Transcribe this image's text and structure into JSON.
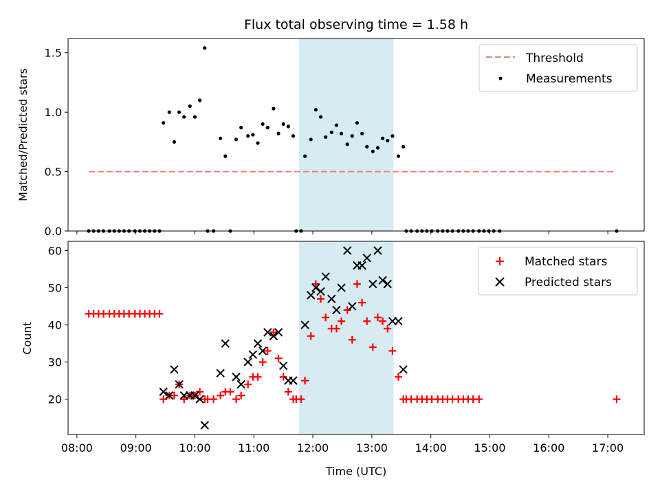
{
  "chart_data": [
    {
      "type": "scatter",
      "title": "Flux total observing time = 1.58 h",
      "ylabel": "Matched/Predicted stars",
      "xlim": [
        "07:51",
        "17:37"
      ],
      "ylim": [
        0,
        1.62
      ],
      "yticks": [
        "0.0",
        "0.5",
        "1.0",
        "1.5"
      ],
      "grid": false,
      "legend_position": "top-right",
      "highlight_span": {
        "start": "11:46",
        "end": "13:22",
        "color": "#add8e6"
      },
      "threshold": {
        "name": "Threshold",
        "y": 0.5,
        "x_start": "08:12",
        "x_end": "17:06",
        "color": "#f08080",
        "style": "dashed"
      },
      "series": [
        {
          "name": "Measurements",
          "color": "#000000",
          "marker": "dot",
          "points": [
            [
              "08:12",
              0
            ],
            [
              "08:17",
              0
            ],
            [
              "08:22",
              0
            ],
            [
              "08:27",
              0
            ],
            [
              "08:33",
              0
            ],
            [
              "08:38",
              0
            ],
            [
              "08:43",
              0
            ],
            [
              "08:48",
              0
            ],
            [
              "08:53",
              0
            ],
            [
              "08:59",
              0
            ],
            [
              "09:04",
              0
            ],
            [
              "09:09",
              0
            ],
            [
              "09:14",
              0
            ],
            [
              "09:19",
              0
            ],
            [
              "09:24",
              0
            ],
            [
              "09:28",
              0.91
            ],
            [
              "09:34",
              1.0
            ],
            [
              "09:39",
              0.75
            ],
            [
              "09:44",
              1.0
            ],
            [
              "09:49",
              0.96
            ],
            [
              "09:55",
              1.05
            ],
            [
              "10:00",
              0.96
            ],
            [
              "10:05",
              1.1
            ],
            [
              "10:10",
              1.54
            ],
            [
              "10:13",
              0
            ],
            [
              "10:19",
              0
            ],
            [
              "10:26",
              0.78
            ],
            [
              "10:31",
              0.63
            ],
            [
              "10:36",
              0
            ],
            [
              "10:42",
              0.77
            ],
            [
              "10:47",
              0.87
            ],
            [
              "10:54",
              0.8
            ],
            [
              "10:59",
              0.81
            ],
            [
              "11:04",
              0.74
            ],
            [
              "11:09",
              0.9
            ],
            [
              "11:14",
              0.87
            ],
            [
              "11:20",
              1.03
            ],
            [
              "11:25",
              0.82
            ],
            [
              "11:30",
              0.9
            ],
            [
              "11:35",
              0.88
            ],
            [
              "11:40",
              0.8
            ],
            [
              "11:43",
              0
            ],
            [
              "11:48",
              0
            ],
            [
              "11:52",
              0.63
            ],
            [
              "11:58",
              0.77
            ],
            [
              "12:03",
              1.02
            ],
            [
              "12:08",
              0.96
            ],
            [
              "12:13",
              0.79
            ],
            [
              "12:19",
              0.83
            ],
            [
              "12:24",
              0.89
            ],
            [
              "12:29",
              0.82
            ],
            [
              "12:35",
              0.73
            ],
            [
              "12:40",
              0.8
            ],
            [
              "12:45",
              0.91
            ],
            [
              "12:50",
              0.82
            ],
            [
              "12:55",
              0.71
            ],
            [
              "13:01",
              0.67
            ],
            [
              "13:06",
              0.7
            ],
            [
              "13:11",
              0.78
            ],
            [
              "13:16",
              0.76
            ],
            [
              "13:21",
              0.8
            ],
            [
              "13:27",
              0.63
            ],
            [
              "13:32",
              0.71
            ],
            [
              "13:35",
              0
            ],
            [
              "13:40",
              0
            ],
            [
              "13:46",
              0
            ],
            [
              "13:51",
              0
            ],
            [
              "13:56",
              0
            ],
            [
              "14:01",
              0
            ],
            [
              "14:07",
              0
            ],
            [
              "14:12",
              0
            ],
            [
              "14:17",
              0
            ],
            [
              "14:22",
              0
            ],
            [
              "14:28",
              0
            ],
            [
              "14:33",
              0
            ],
            [
              "14:38",
              0
            ],
            [
              "14:43",
              0
            ],
            [
              "14:49",
              0
            ],
            [
              "14:54",
              0
            ],
            [
              "14:59",
              0
            ],
            [
              "15:04",
              0
            ],
            [
              "15:10",
              0
            ],
            [
              "17:09",
              0
            ]
          ]
        }
      ]
    },
    {
      "type": "scatter",
      "xlabel": "Time (UTC)",
      "ylabel": "Count",
      "xlim": [
        "07:51",
        "17:37"
      ],
      "ylim": [
        10.5,
        62.5
      ],
      "xticks": [
        "08:00",
        "09:00",
        "10:00",
        "11:00",
        "12:00",
        "13:00",
        "14:00",
        "15:00",
        "16:00",
        "17:00"
      ],
      "yticks": [
        "20",
        "30",
        "40",
        "50",
        "60"
      ],
      "grid": false,
      "legend_position": "top-right",
      "highlight_span": {
        "start": "11:46",
        "end": "13:22",
        "color": "#add8e6"
      },
      "series": [
        {
          "name": "Matched stars",
          "color": "#ff0000",
          "marker": "plus",
          "points": [
            [
              "08:12",
              43
            ],
            [
              "08:17",
              43
            ],
            [
              "08:22",
              43
            ],
            [
              "08:27",
              43
            ],
            [
              "08:33",
              43
            ],
            [
              "08:38",
              43
            ],
            [
              "08:43",
              43
            ],
            [
              "08:48",
              43
            ],
            [
              "08:53",
              43
            ],
            [
              "08:59",
              43
            ],
            [
              "09:04",
              43
            ],
            [
              "09:09",
              43
            ],
            [
              "09:14",
              43
            ],
            [
              "09:19",
              43
            ],
            [
              "09:24",
              43
            ],
            [
              "09:28",
              20
            ],
            [
              "09:34",
              21
            ],
            [
              "09:39",
              21
            ],
            [
              "09:44",
              24
            ],
            [
              "09:49",
              20
            ],
            [
              "09:55",
              21
            ],
            [
              "10:00",
              21
            ],
            [
              "10:05",
              22
            ],
            [
              "10:10",
              20
            ],
            [
              "10:13",
              20
            ],
            [
              "10:19",
              20
            ],
            [
              "10:26",
              21
            ],
            [
              "10:31",
              22
            ],
            [
              "10:36",
              22
            ],
            [
              "10:42",
              20
            ],
            [
              "10:47",
              21
            ],
            [
              "10:54",
              24
            ],
            [
              "10:59",
              26
            ],
            [
              "11:04",
              26
            ],
            [
              "11:09",
              30
            ],
            [
              "11:14",
              33
            ],
            [
              "11:20",
              38
            ],
            [
              "11:25",
              31
            ],
            [
              "11:30",
              26
            ],
            [
              "11:35",
              22
            ],
            [
              "11:40",
              20
            ],
            [
              "11:43",
              20
            ],
            [
              "11:48",
              20
            ],
            [
              "11:52",
              25
            ],
            [
              "11:58",
              37
            ],
            [
              "12:03",
              51
            ],
            [
              "12:08",
              47
            ],
            [
              "12:13",
              42
            ],
            [
              "12:19",
              39
            ],
            [
              "12:24",
              39
            ],
            [
              "12:29",
              41
            ],
            [
              "12:35",
              44
            ],
            [
              "12:40",
              36
            ],
            [
              "12:45",
              51
            ],
            [
              "12:50",
              46
            ],
            [
              "12:55",
              41
            ],
            [
              "13:01",
              34
            ],
            [
              "13:06",
              42
            ],
            [
              "13:11",
              41
            ],
            [
              "13:16",
              39
            ],
            [
              "13:21",
              33
            ],
            [
              "13:27",
              26
            ],
            [
              "13:32",
              20
            ],
            [
              "13:35",
              20
            ],
            [
              "13:40",
              20
            ],
            [
              "13:46",
              20
            ],
            [
              "13:51",
              20
            ],
            [
              "13:56",
              20
            ],
            [
              "14:01",
              20
            ],
            [
              "14:07",
              20
            ],
            [
              "14:12",
              20
            ],
            [
              "14:17",
              20
            ],
            [
              "14:22",
              20
            ],
            [
              "14:28",
              20
            ],
            [
              "14:33",
              20
            ],
            [
              "14:38",
              20
            ],
            [
              "14:43",
              20
            ],
            [
              "14:49",
              20
            ],
            [
              "17:09",
              20
            ]
          ]
        },
        {
          "name": "Predicted stars",
          "color": "#000000",
          "marker": "x",
          "points": [
            [
              "09:28",
              22
            ],
            [
              "09:34",
              21
            ],
            [
              "09:39",
              28
            ],
            [
              "09:44",
              24
            ],
            [
              "09:49",
              21
            ],
            [
              "09:55",
              21
            ],
            [
              "10:00",
              21
            ],
            [
              "10:05",
              20
            ],
            [
              "10:10",
              13
            ],
            [
              "10:26",
              27
            ],
            [
              "10:31",
              35
            ],
            [
              "10:42",
              26
            ],
            [
              "10:47",
              24
            ],
            [
              "10:54",
              30
            ],
            [
              "10:59",
              32
            ],
            [
              "11:04",
              35
            ],
            [
              "11:09",
              33
            ],
            [
              "11:14",
              38
            ],
            [
              "11:20",
              37
            ],
            [
              "11:25",
              38
            ],
            [
              "11:30",
              29
            ],
            [
              "11:35",
              25
            ],
            [
              "11:40",
              25
            ],
            [
              "11:52",
              40
            ],
            [
              "11:58",
              48
            ],
            [
              "12:03",
              50
            ],
            [
              "12:08",
              49
            ],
            [
              "12:13",
              53
            ],
            [
              "12:19",
              47
            ],
            [
              "12:24",
              44
            ],
            [
              "12:29",
              50
            ],
            [
              "12:35",
              60
            ],
            [
              "12:40",
              45
            ],
            [
              "12:45",
              56
            ],
            [
              "12:50",
              56
            ],
            [
              "12:55",
              58
            ],
            [
              "13:01",
              51
            ],
            [
              "13:06",
              60
            ],
            [
              "13:11",
              52
            ],
            [
              "13:16",
              51
            ],
            [
              "13:21",
              41
            ],
            [
              "13:27",
              41
            ],
            [
              "13:32",
              28
            ]
          ]
        }
      ]
    }
  ]
}
